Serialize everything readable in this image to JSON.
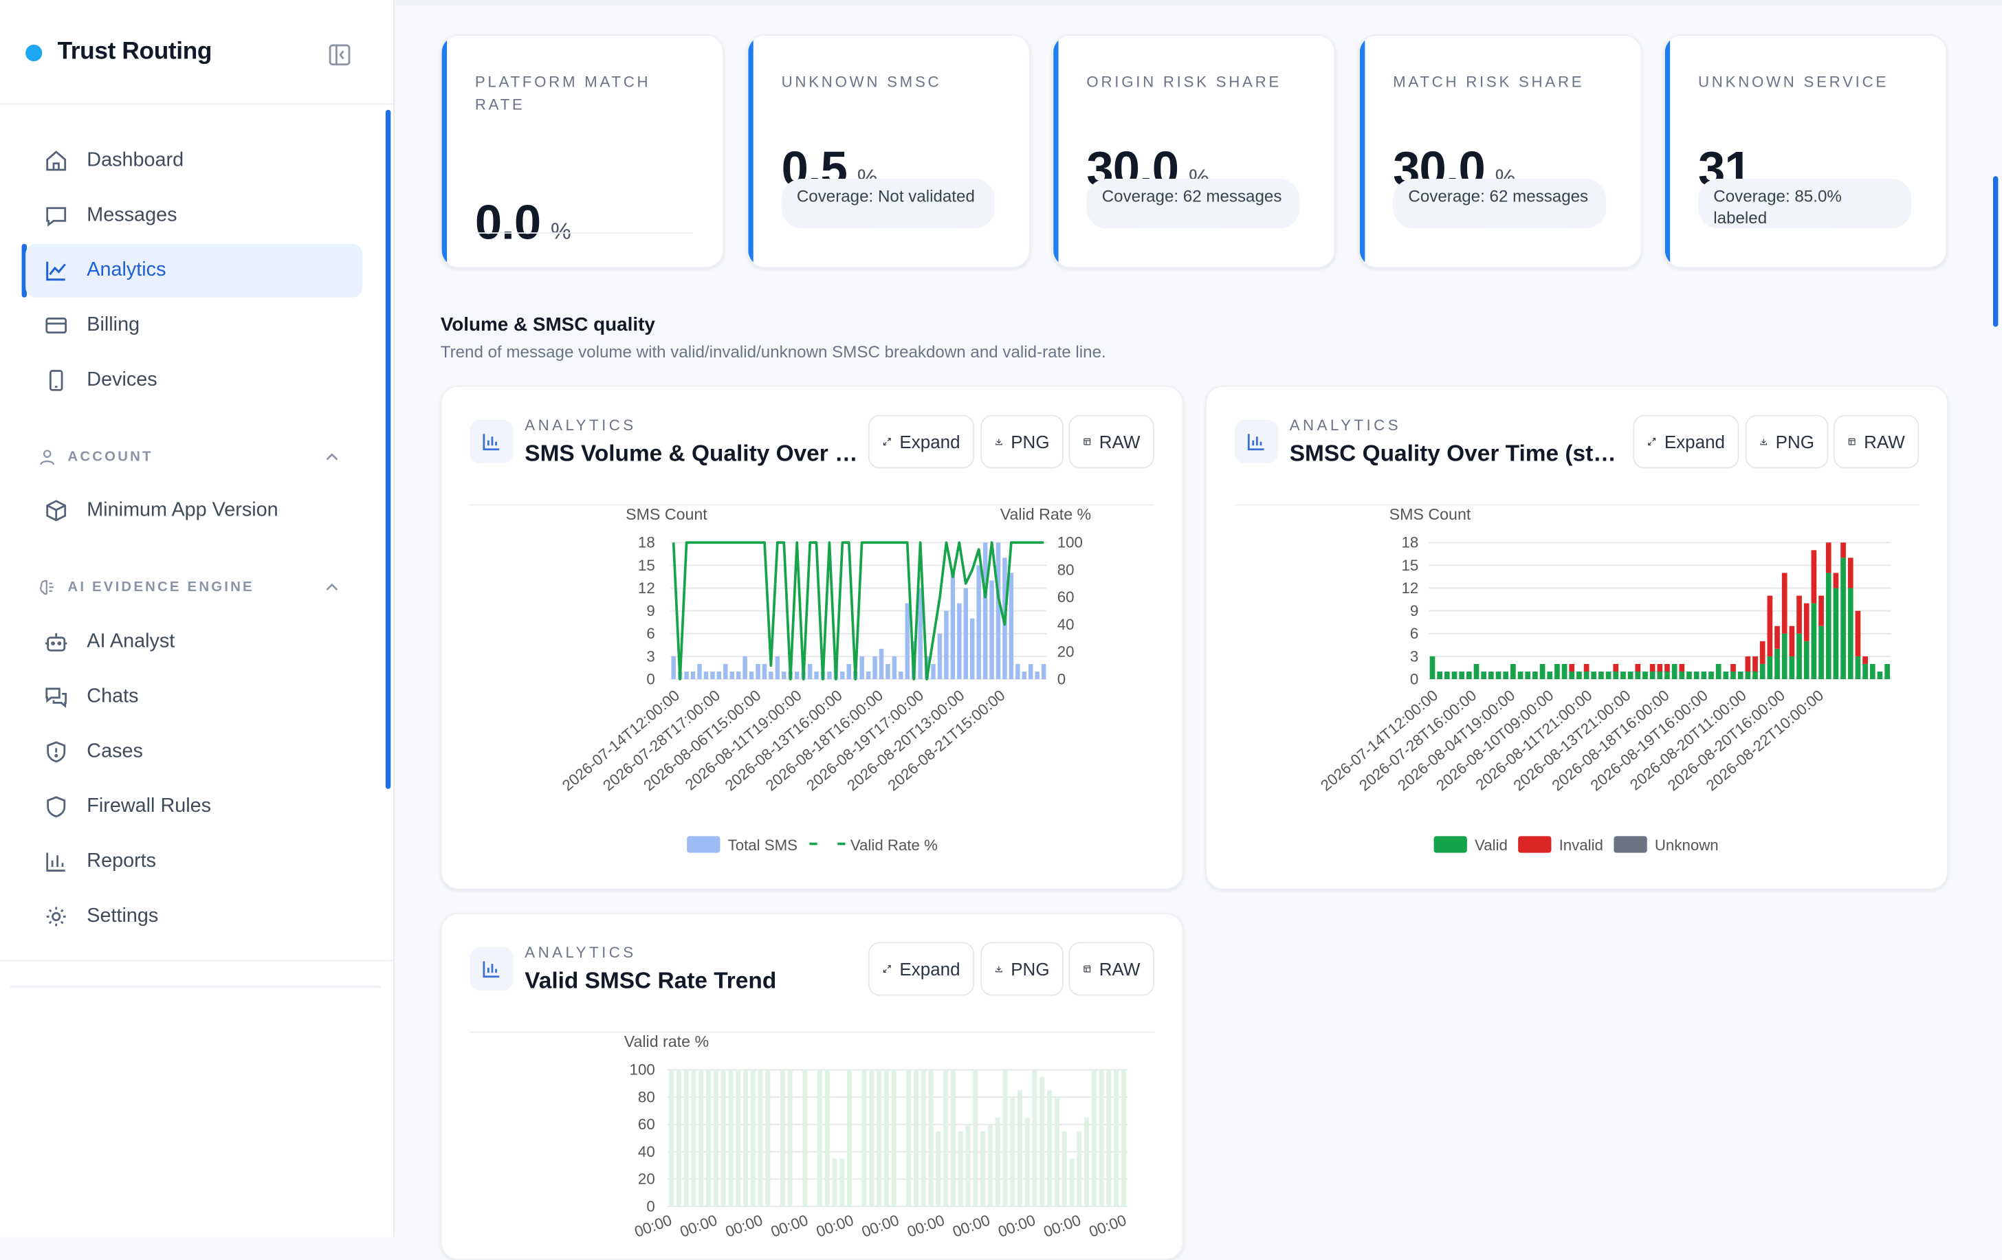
{
  "app": {
    "title": "Trust Routing"
  },
  "sidebar": {
    "main_items": [
      {
        "label": "Dashboard",
        "icon": "home-icon"
      },
      {
        "label": "Messages",
        "icon": "message-icon"
      },
      {
        "label": "Analytics",
        "icon": "line-chart-icon",
        "active": true
      },
      {
        "label": "Billing",
        "icon": "credit-card-icon"
      },
      {
        "label": "Devices",
        "icon": "phone-icon"
      }
    ],
    "account": {
      "title": "ACCOUNT",
      "items": [
        {
          "label": "Minimum App Version",
          "icon": "package-icon"
        }
      ]
    },
    "ai": {
      "title": "AI EVIDENCE ENGINE",
      "items": [
        {
          "label": "AI Analyst",
          "icon": "bot-icon"
        },
        {
          "label": "Chats",
          "icon": "chats-icon"
        },
        {
          "label": "Cases",
          "icon": "shield-alert-icon"
        },
        {
          "label": "Firewall Rules",
          "icon": "shield-icon"
        },
        {
          "label": "Reports",
          "icon": "bar-chart-icon"
        },
        {
          "label": "Settings",
          "icon": "gear-icon"
        }
      ]
    }
  },
  "stats": [
    {
      "label": "PLATFORM MATCH RATE",
      "value": "0.0",
      "unit": "%",
      "coverage": ""
    },
    {
      "label": "UNKNOWN SMSC",
      "value": "0.5",
      "unit": "%",
      "coverage": "Coverage: Not validated"
    },
    {
      "label": "ORIGIN RISK SHARE",
      "value": "30.0",
      "unit": "%",
      "coverage": "Coverage: 62 messages"
    },
    {
      "label": "MATCH RISK SHARE",
      "value": "30.0",
      "unit": "%",
      "coverage": "Coverage: 62 messages"
    },
    {
      "label": "UNKNOWN SERVICE",
      "value": "31",
      "unit": "",
      "coverage": "Coverage: 85.0% labeled"
    }
  ],
  "section": {
    "title": "Volume & SMSC quality",
    "subtitle": "Trend of message volume with valid/invalid/unknown SMSC breakdown and valid-rate line."
  },
  "buttons": {
    "expand": "Expand",
    "png": "PNG",
    "raw": "RAW"
  },
  "colors": {
    "accent": "#1d6fe8",
    "valid": "#16a34a",
    "invalid": "#dc2626",
    "unknown": "#6b7280",
    "total": "#9dbcf3"
  },
  "charts": [
    {
      "eyebrow": "ANALYTICS",
      "title": "SMS Volume & Quality Over Ti..."
    },
    {
      "eyebrow": "ANALYTICS",
      "title": "SMSC Quality Over Time (sta..."
    },
    {
      "eyebrow": "ANALYTICS",
      "title": "Valid SMSC Rate Trend"
    }
  ],
  "chart_data": [
    {
      "type": "bar",
      "ylabel_left": "SMS Count",
      "ylabel_right": "Valid Rate %",
      "ylim_left": [
        0,
        18
      ],
      "yticks_left": [
        "18",
        "15",
        "12",
        "9",
        "6",
        "3",
        "0"
      ],
      "ylim_right": [
        0,
        100
      ],
      "yticks_right": [
        "100",
        "80",
        "60",
        "40",
        "20",
        "0"
      ],
      "x_tick_labels": [
        "2026-07-14T12:00:00",
        "2026-07-28T17:00:00",
        "2026-08-06T15:00:00",
        "2026-08-11T19:00:00",
        "2026-08-13T16:00:00",
        "2026-08-18T16:00:00",
        "2026-08-19T17:00:00",
        "2026-08-20T13:00:00",
        "2026-08-21T15:00:00"
      ],
      "series": [
        {
          "name": "Total SMS",
          "kind": "bar",
          "values": [
            3,
            1,
            1,
            1,
            2,
            1,
            1,
            1,
            2,
            1,
            1,
            3,
            1,
            2,
            2,
            1,
            3,
            1,
            1,
            1,
            1,
            2,
            1,
            1,
            1,
            3,
            1,
            2,
            1,
            3,
            1,
            3,
            4,
            2,
            3,
            1,
            10,
            5,
            12,
            3,
            2,
            6,
            9,
            14,
            10,
            12,
            8,
            15,
            18,
            13,
            18,
            16,
            14,
            2,
            1,
            2,
            1,
            2
          ]
        },
        {
          "name": "Valid Rate %",
          "kind": "line",
          "values": [
            100,
            0,
            100,
            100,
            100,
            100,
            100,
            100,
            100,
            100,
            100,
            100,
            100,
            100,
            100,
            10,
            100,
            100,
            0,
            100,
            0,
            100,
            100,
            0,
            100,
            0,
            100,
            100,
            0,
            100,
            100,
            100,
            100,
            100,
            100,
            100,
            100,
            0,
            100,
            0,
            30,
            60,
            100,
            75,
            100,
            70,
            80,
            95,
            60,
            100,
            60,
            40,
            100,
            100,
            100,
            100,
            100,
            100
          ]
        }
      ]
    },
    {
      "type": "bar",
      "stacked": true,
      "ylabel": "SMS Count",
      "ylim": [
        0,
        18
      ],
      "yticks": [
        "18",
        "15",
        "12",
        "9",
        "6",
        "3",
        "0"
      ],
      "x_tick_labels": [
        "2026-07-14T12:00:00",
        "2026-07-28T16:00:00",
        "2026-08-04T19:00:00",
        "2026-08-10T09:00:00",
        "2026-08-11T21:00:00",
        "2026-08-13T21:00:00",
        "2026-08-18T16:00:00",
        "2026-08-19T16:00:00",
        "2026-08-20T11:00:00",
        "2026-08-20T16:00:00",
        "2026-08-22T10:00:00"
      ],
      "series": [
        {
          "name": "Valid",
          "values": [
            3,
            1,
            1,
            1,
            1,
            1,
            2,
            1,
            1,
            1,
            1,
            2,
            1,
            1,
            1,
            2,
            1,
            2,
            2,
            1,
            1,
            1,
            1,
            1,
            1,
            1,
            1,
            1,
            1,
            1,
            1,
            1,
            1,
            2,
            1,
            1,
            1,
            1,
            1,
            2,
            1,
            1,
            1,
            1,
            1,
            2,
            3,
            4,
            6,
            3,
            6,
            5,
            10,
            7,
            14,
            12,
            16,
            12,
            3,
            2,
            2,
            1,
            2
          ]
        },
        {
          "name": "Invalid",
          "values": [
            0,
            0,
            0,
            0,
            0,
            0,
            0,
            0,
            0,
            0,
            0,
            0,
            0,
            0,
            0,
            0,
            0,
            0,
            0,
            1,
            0,
            1,
            0,
            0,
            0,
            1,
            0,
            0,
            1,
            0,
            1,
            1,
            1,
            0,
            1,
            0,
            0,
            0,
            0,
            0,
            0,
            1,
            0,
            2,
            2,
            3,
            8,
            3,
            8,
            4,
            5,
            5,
            7,
            4,
            4,
            2,
            2,
            4,
            6,
            1,
            0,
            0,
            0
          ]
        },
        {
          "name": "Unknown",
          "values": [
            0,
            0,
            0,
            0,
            0,
            0,
            0,
            0,
            0,
            0,
            0,
            0,
            0,
            0,
            0,
            0,
            0,
            0,
            0,
            0,
            0,
            0,
            0,
            0,
            0,
            0,
            0,
            0,
            0,
            0,
            0,
            0,
            0,
            0,
            0,
            0,
            0,
            0,
            0,
            0,
            0,
            0,
            0,
            0,
            0,
            0,
            0,
            0,
            0,
            0,
            0,
            0,
            0,
            0,
            0,
            0,
            0,
            0,
            0,
            0,
            0,
            0,
            0
          ]
        }
      ]
    },
    {
      "type": "bar",
      "ylabel": "Valid rate %",
      "ylim": [
        0,
        100
      ],
      "yticks": [
        "100",
        "80",
        "60",
        "40",
        "20",
        "0"
      ],
      "x_tick_labels": [
        "00:00",
        "00:00",
        "00:00",
        "00:00",
        "00:00",
        "00:00",
        "00:00",
        "00:00",
        "00:00",
        "00:00",
        "00:00"
      ],
      "series": [
        {
          "name": "Valid rate %",
          "values": [
            100,
            100,
            100,
            100,
            100,
            100,
            100,
            100,
            100,
            100,
            100,
            100,
            100,
            100,
            0,
            100,
            100,
            0,
            100,
            0,
            100,
            100,
            35,
            35,
            100,
            0,
            100,
            100,
            100,
            100,
            100,
            0,
            100,
            100,
            100,
            100,
            55,
            100,
            100,
            55,
            60,
            100,
            55,
            60,
            65,
            100,
            80,
            85,
            65,
            100,
            95,
            85,
            80,
            55,
            35,
            55,
            65,
            100,
            100,
            100,
            100,
            100
          ]
        }
      ]
    }
  ]
}
